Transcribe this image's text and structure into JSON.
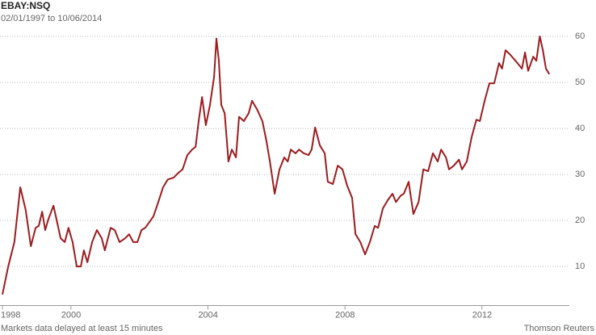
{
  "chart_data": {
    "type": "line",
    "title": "EBAY:NSQ",
    "subtitle": "02/01/1997 to 10/06/2014",
    "source": "Thomson Reuters",
    "note": "Markets data delayed at least 15 minutes",
    "x": [
      1998.0,
      1998.17,
      1998.35,
      1998.52,
      1998.68,
      1998.83,
      1998.97,
      1999.06,
      1999.16,
      1999.25,
      1999.34,
      1999.49,
      1999.58,
      1999.7,
      1999.82,
      1999.93,
      2000.05,
      2000.17,
      2000.29,
      2000.38,
      2000.48,
      2000.62,
      2000.76,
      2000.9,
      2000.99,
      2001.16,
      2001.28,
      2001.42,
      2001.58,
      2001.7,
      2001.82,
      2001.94,
      2002.06,
      2002.17,
      2002.29,
      2002.41,
      2002.55,
      2002.69,
      2002.83,
      2003.0,
      2003.12,
      2003.26,
      2003.4,
      2003.54,
      2003.64,
      2003.73,
      2003.83,
      2003.94,
      2004.06,
      2004.18,
      2004.25,
      2004.32,
      2004.39,
      2004.49,
      2004.6,
      2004.7,
      2004.82,
      2004.91,
      2005.05,
      2005.19,
      2005.29,
      2005.43,
      2005.59,
      2005.71,
      2005.81,
      2005.95,
      2006.09,
      2006.23,
      2006.33,
      2006.42,
      2006.56,
      2006.66,
      2006.8,
      2006.94,
      2007.03,
      2007.13,
      2007.27,
      2007.41,
      2007.5,
      2007.65,
      2007.79,
      2007.93,
      2008.07,
      2008.21,
      2008.31,
      2008.45,
      2008.59,
      2008.73,
      2008.87,
      2008.97,
      2009.11,
      2009.25,
      2009.39,
      2009.49,
      2009.63,
      2009.72,
      2009.86,
      2010.0,
      2010.15,
      2010.29,
      2010.43,
      2010.57,
      2010.71,
      2010.81,
      2010.95,
      2011.04,
      2011.18,
      2011.33,
      2011.42,
      2011.56,
      2011.7,
      2011.84,
      2011.94,
      2012.08,
      2012.22,
      2012.36,
      2012.5,
      2012.59,
      2012.69,
      2012.83,
      2012.98,
      2013.07,
      2013.17,
      2013.26,
      2013.35,
      2013.5,
      2013.59,
      2013.69,
      2013.78,
      2013.87,
      2013.97
    ],
    "series": [
      {
        "name": "EBAY:NSQ",
        "color": "#9b1c1f",
        "values": [
          3.9,
          10.0,
          15.3,
          27.2,
          22.3,
          14.4,
          18.4,
          18.8,
          21.9,
          17.9,
          20.2,
          23.2,
          20.2,
          16.1,
          15.3,
          18.4,
          15.3,
          10.0,
          10.0,
          13.5,
          10.9,
          15.3,
          17.9,
          16.1,
          13.5,
          18.4,
          17.9,
          15.3,
          16.1,
          17.0,
          15.3,
          15.3,
          17.9,
          18.4,
          19.6,
          20.9,
          24.0,
          27.2,
          28.9,
          29.3,
          30.2,
          31.1,
          34.2,
          35.4,
          36.0,
          41.6,
          46.8,
          40.7,
          45.1,
          51.2,
          59.5,
          54.7,
          45.1,
          43.3,
          32.8,
          35.4,
          33.7,
          42.5,
          41.6,
          43.3,
          46.0,
          44.2,
          41.6,
          37.2,
          32.8,
          25.8,
          31.1,
          33.7,
          32.8,
          35.4,
          34.6,
          35.4,
          34.6,
          34.2,
          35.4,
          40.2,
          36.3,
          34.6,
          28.4,
          27.9,
          31.9,
          31.1,
          27.5,
          24.9,
          17.0,
          15.3,
          12.6,
          15.3,
          18.8,
          18.4,
          22.6,
          24.4,
          25.8,
          24.0,
          25.4,
          25.8,
          28.4,
          21.4,
          24.0,
          31.1,
          30.7,
          34.6,
          32.8,
          35.4,
          33.7,
          31.1,
          31.9,
          33.2,
          31.1,
          32.8,
          38.1,
          41.9,
          41.6,
          46.0,
          49.8,
          49.8,
          54.2,
          53.0,
          57.0,
          56.0,
          54.7,
          53.9,
          53.0,
          56.5,
          52.5,
          55.6,
          54.7,
          60.0,
          57.0,
          53.0,
          51.8
        ]
      }
    ],
    "xlim": [
      1998,
      2014.2
    ],
    "xticks": [
      1998,
      2000,
      2004,
      2008,
      2012
    ],
    "ylim": [
      1.5,
      63
    ],
    "yticks": [
      10,
      20,
      30,
      40,
      50,
      60
    ],
    "grid": true
  }
}
